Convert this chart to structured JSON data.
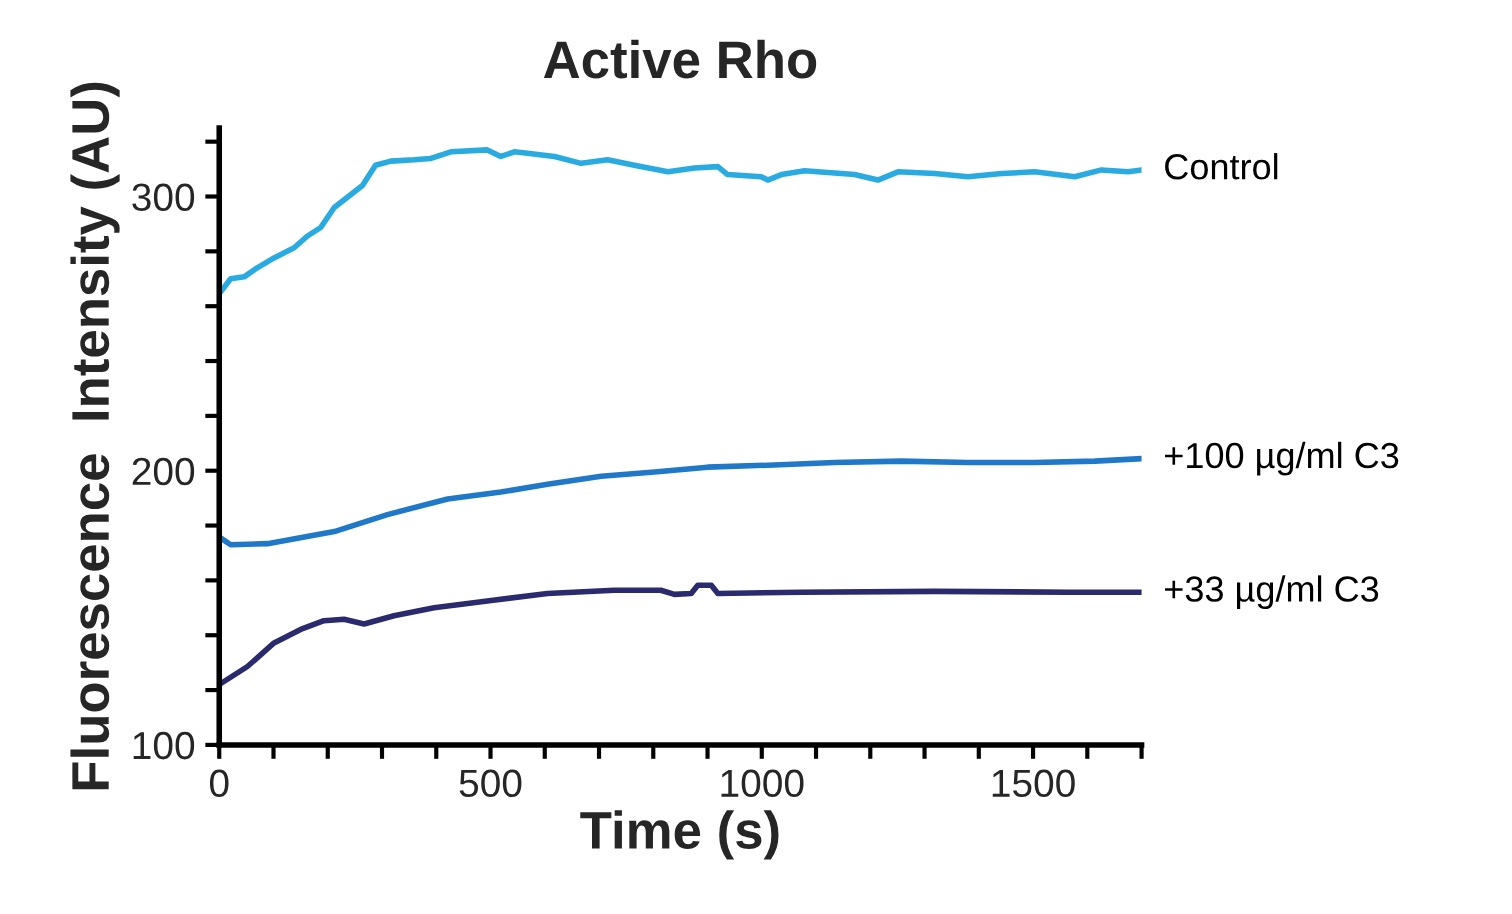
{
  "chart_data": {
    "type": "line",
    "title": "Active Rho",
    "xlabel": "Time (s)",
    "ylabel": "Fluorescence  Intensity (AU)",
    "xlim": [
      0,
      1700
    ],
    "ylim": [
      100,
      325
    ],
    "xticks": [
      0,
      {
        "value": 100,
        "label": null
      },
      {
        "value": 200,
        "label": null
      },
      {
        "value": 300,
        "label": null
      },
      {
        "value": 400,
        "label": null
      },
      500,
      {
        "value": 600,
        "label": null
      },
      {
        "value": 700,
        "label": null
      },
      {
        "value": 800,
        "label": null
      },
      {
        "value": 900,
        "label": null
      },
      1000,
      {
        "value": 1100,
        "label": null
      },
      {
        "value": 1200,
        "label": null
      },
      {
        "value": 1300,
        "label": null
      },
      {
        "value": 1400,
        "label": null
      },
      1500,
      {
        "value": 1600,
        "label": null
      },
      {
        "value": 1700,
        "label": null
      }
    ],
    "yticks": [
      100,
      {
        "value": 120,
        "label": null
      },
      {
        "value": 140,
        "label": null
      },
      {
        "value": 160,
        "label": null
      },
      {
        "value": 180,
        "label": null
      },
      200,
      {
        "value": 220,
        "label": null
      },
      {
        "value": 240,
        "label": null
      },
      {
        "value": 260,
        "label": null
      },
      {
        "value": 280,
        "label": null
      },
      300,
      {
        "value": 320,
        "label": null
      }
    ],
    "grid": false,
    "legend": false,
    "marker": "none",
    "line_style": "solid",
    "series": [
      {
        "name": "Control",
        "color": "#29abe2",
        "x": [
          3,
          21,
          46,
          70,
          101,
          138,
          162,
          187,
          212,
          264,
          288,
          316,
          359,
          390,
          427,
          494,
          519,
          544,
          568,
          618,
          667,
          716,
          765,
          827,
          876,
          919,
          937,
          999,
          1011,
          1036,
          1079,
          1171,
          1214,
          1251,
          1319,
          1380,
          1442,
          1503,
          1577,
          1626,
          1675,
          1700
        ],
        "values": [
          265.3,
          270,
          270.7,
          274,
          277.6,
          281.3,
          285.5,
          288.7,
          296,
          304,
          311.4,
          312.9,
          313.4,
          313.9,
          316.3,
          317,
          314.6,
          316.3,
          315.8,
          314.6,
          312.1,
          313.4,
          311.4,
          309,
          310.4,
          310.9,
          308,
          307.2,
          306,
          308,
          309.4,
          308,
          306,
          309,
          308.4,
          307.2,
          308.4,
          309,
          307.2,
          309.7,
          309,
          309.7
        ]
      },
      {
        "name": "+100 µg/ml C3",
        "color": "#1f78c8",
        "x": [
          3,
          21,
          89,
          212,
          310,
          421,
          519,
          605,
          704,
          802,
          900,
          1011,
          1134,
          1257,
          1380,
          1503,
          1614,
          1700
        ],
        "values": [
          175.4,
          173,
          173.4,
          177.8,
          184,
          189.7,
          192.2,
          195.1,
          198,
          199.5,
          201.3,
          202,
          203,
          203.5,
          203,
          203,
          203.5,
          204.4
        ]
      },
      {
        "name": "+33 µg/ml C3",
        "color": "#2a2a6e",
        "x": [
          3,
          52,
          101,
          150,
          193,
          230,
          267,
          322,
          396,
          494,
          605,
          728,
          814,
          839,
          870,
          882,
          907,
          919,
          1073,
          1319,
          1565,
          1700
        ],
        "values": [
          122.4,
          128.6,
          137.2,
          142.1,
          145.3,
          145.8,
          144.1,
          147.1,
          150,
          152.5,
          155.2,
          156.4,
          156.4,
          154.9,
          155.2,
          158.2,
          158.2,
          155.2,
          155.7,
          156,
          155.7,
          155.7
        ]
      }
    ]
  }
}
